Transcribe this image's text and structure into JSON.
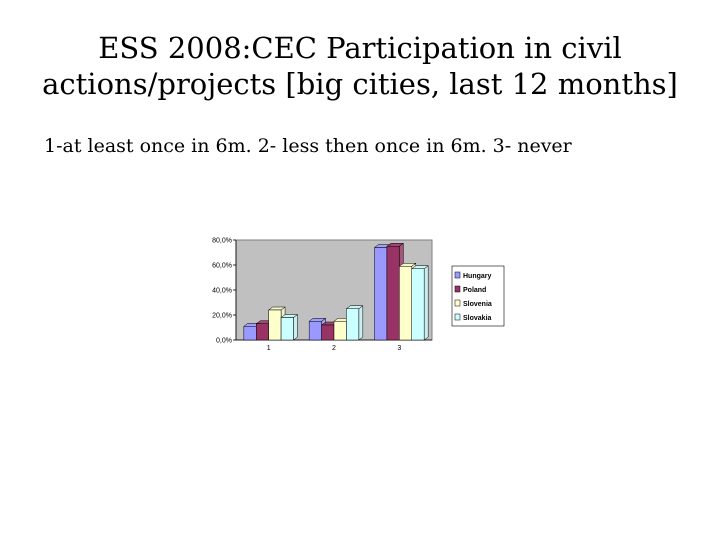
{
  "title_line1": "ESS 2008:CEC Participation in civil",
  "title_line2": "actions/projects [big cities, last 12 months]",
  "subtitle": "1-at least once in 6m.  2- less then once in 6m.  3- never",
  "chart_data": {
    "type": "bar",
    "title": "",
    "xlabel": "",
    "ylabel": "",
    "categories": [
      "1",
      "2",
      "3"
    ],
    "ylim": [
      0,
      80
    ],
    "yticks": [
      "0,0%",
      "20,0%",
      "40,0%",
      "60,0%",
      "80,0%"
    ],
    "grid": false,
    "legend": "right",
    "series": [
      {
        "name": "Hungary",
        "color": "#9999ff",
        "values": [
          11,
          15,
          74
        ]
      },
      {
        "name": "Poland",
        "color": "#993366",
        "values": [
          13,
          12,
          75
        ]
      },
      {
        "name": "Slovenia",
        "color": "#ffffcc",
        "values": [
          24,
          15,
          59
        ]
      },
      {
        "name": "Slovakia",
        "color": "#ccffff",
        "values": [
          18,
          25,
          57
        ]
      }
    ]
  }
}
